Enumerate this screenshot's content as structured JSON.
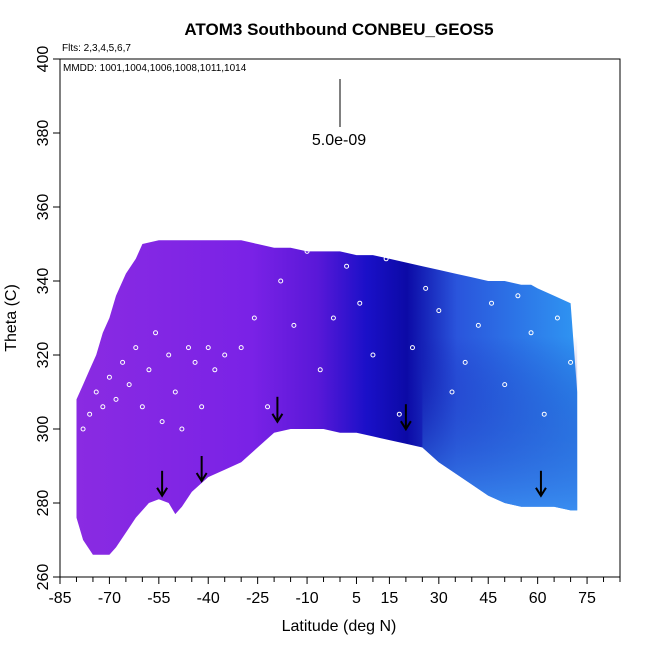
{
  "chart_data": {
    "type": "scatter",
    "title": "ATOM3 Southbound CONBEU_GEOS5",
    "subtitle_flights": "Flts: 2,3,4,5,6,7",
    "subtitle_dates": "MMDD: 1001,1004,1006,1008,1011,1014",
    "xlabel": "Latitude (deg N)",
    "ylabel": "Theta (C)",
    "xlim": [
      -85,
      85
    ],
    "ylim": [
      260,
      400
    ],
    "x_ticks": [
      -85,
      -70,
      -55,
      -40,
      -25,
      -10,
      5,
      15,
      30,
      45,
      60,
      75
    ],
    "x_tick_labels": [
      "-85",
      "-70",
      "-55",
      "-40",
      "-25",
      "-10",
      "5",
      "15",
      "30",
      "45",
      "60",
      "75"
    ],
    "x_minor_ticks": [
      -80,
      -75,
      -65,
      -60,
      -50,
      -45,
      -35,
      -30,
      -20,
      -15,
      -5,
      0,
      10,
      20,
      25,
      35,
      40,
      50,
      55,
      65,
      70,
      80,
      85
    ],
    "y_ticks": [
      260,
      280,
      300,
      320,
      340,
      360,
      380,
      400
    ],
    "y_tick_labels": [
      "260",
      "280",
      "300",
      "320",
      "340",
      "360",
      "380",
      "400"
    ],
    "scale_bar_label": "5.0e-09",
    "colors": {
      "purple": "#8a2be2",
      "violet": "#7a22e6",
      "indigo": "#5a18d8",
      "darkblue": "#1a10c8",
      "navy": "#0c0aa6",
      "lightblue": "#3a8cf0",
      "skyblue": "#2f95f2"
    },
    "series": [
      {
        "name": "curtain_upper_boundary",
        "x": [
          -80,
          -78,
          -76,
          -74,
          -72,
          -70,
          -68,
          -65,
          -62,
          -60,
          -55,
          -50,
          -45,
          -40,
          -35,
          -30,
          -25,
          -20,
          -15,
          -10,
          -5,
          0,
          5,
          10,
          15,
          20,
          25,
          30,
          35,
          40,
          45,
          50,
          55,
          58,
          60,
          65,
          70,
          72
        ],
        "y": [
          308,
          312,
          316,
          320,
          326,
          330,
          336,
          342,
          346,
          350,
          351,
          351,
          351,
          351,
          351,
          351,
          350,
          349,
          349,
          348,
          348,
          348,
          347,
          347,
          346,
          345,
          344,
          343,
          342,
          341,
          340,
          340,
          339,
          339,
          338,
          336,
          334,
          310
        ]
      },
      {
        "name": "curtain_lower_boundary",
        "x": [
          -80,
          -78,
          -75,
          -72,
          -70,
          -68,
          -65,
          -62,
          -58,
          -55,
          -52,
          -50,
          -48,
          -45,
          -40,
          -35,
          -30,
          -25,
          -20,
          -15,
          -10,
          -5,
          0,
          5,
          10,
          15,
          20,
          25,
          30,
          35,
          40,
          45,
          50,
          55,
          60,
          65,
          70,
          72
        ],
        "y": [
          276,
          270,
          266,
          266,
          266,
          268,
          272,
          276,
          280,
          281,
          280,
          277,
          279,
          283,
          287,
          289,
          291,
          295,
          299,
          300,
          300,
          300,
          299,
          299,
          298,
          297,
          296,
          295,
          291,
          288,
          285,
          282,
          280,
          279,
          279,
          279,
          278,
          278
        ]
      },
      {
        "name": "flight_tracks_points",
        "x": [
          -78,
          -76,
          -74,
          -72,
          -70,
          -68,
          -66,
          -64,
          -62,
          -60,
          -58,
          -56,
          -54,
          -52,
          -50,
          -48,
          -46,
          -44,
          -42,
          -40,
          -38,
          -35,
          -30,
          -26,
          -22,
          -18,
          -14,
          -10,
          -6,
          -2,
          2,
          6,
          10,
          14,
          18,
          22,
          26,
          30,
          34,
          38,
          42,
          46,
          50,
          54,
          58,
          62,
          66,
          70
        ],
        "y": [
          300,
          304,
          310,
          306,
          314,
          308,
          318,
          312,
          322,
          306,
          316,
          326,
          302,
          320,
          310,
          300,
          322,
          318,
          306,
          322,
          316,
          320,
          322,
          330,
          306,
          340,
          328,
          348,
          316,
          330,
          344,
          334,
          320,
          346,
          304,
          322,
          338,
          332,
          310,
          318,
          328,
          334,
          312,
          336,
          326,
          304,
          330,
          318
        ]
      },
      {
        "name": "profile_arrows",
        "x": [
          -54,
          -42,
          -19,
          20,
          61
        ],
        "y": [
          286,
          290,
          306,
          304,
          286
        ]
      }
    ]
  }
}
